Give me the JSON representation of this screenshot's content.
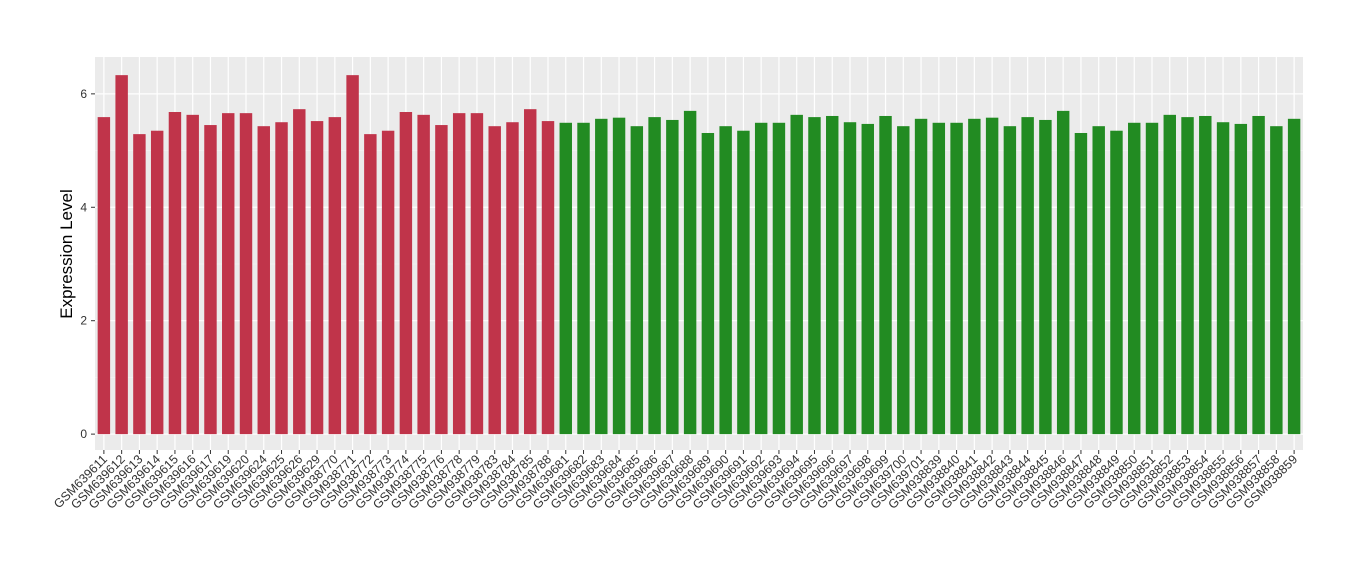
{
  "chart_data": {
    "type": "bar",
    "y_label": "Expression Level",
    "categories": [
      "GSM639611",
      "GSM639612",
      "GSM639613",
      "GSM639614",
      "GSM639615",
      "GSM639616",
      "GSM639617",
      "GSM639619",
      "GSM639620",
      "GSM639624",
      "GSM639625",
      "GSM639626",
      "GSM639629",
      "GSM938770",
      "GSM938771",
      "GSM938772",
      "GSM938773",
      "GSM938774",
      "GSM938775",
      "GSM938776",
      "GSM938778",
      "GSM938779",
      "GSM938783",
      "GSM938784",
      "GSM938785",
      "GSM938788",
      "GSM639681",
      "GSM639682",
      "GSM639683",
      "GSM639684",
      "GSM639685",
      "GSM639686",
      "GSM639687",
      "GSM639688",
      "GSM639689",
      "GSM639690",
      "GSM639691",
      "GSM639692",
      "GSM639693",
      "GSM639694",
      "GSM639695",
      "GSM639696",
      "GSM639697",
      "GSM639698",
      "GSM639699",
      "GSM639700",
      "GSM639701",
      "GSM938839",
      "GSM938840",
      "GSM938841",
      "GSM938842",
      "GSM938843",
      "GSM938844",
      "GSM938845",
      "GSM938846",
      "GSM938847",
      "GSM938848",
      "GSM938849",
      "GSM938850",
      "GSM938851",
      "GSM938852",
      "GSM938853",
      "GSM938854",
      "GSM938855",
      "GSM938856",
      "GSM938857",
      "GSM938858",
      "GSM938859"
    ],
    "values": [
      5.59,
      6.33,
      5.29,
      5.35,
      5.68,
      5.63,
      5.45,
      5.66,
      5.66,
      5.43,
      5.5,
      5.73,
      5.52,
      5.59,
      6.33,
      5.29,
      5.35,
      5.68,
      5.63,
      5.45,
      5.66,
      5.66,
      5.43,
      5.5,
      5.73,
      5.52,
      5.49,
      5.49,
      5.56,
      5.58,
      5.43,
      5.59,
      5.54,
      5.7,
      5.31,
      5.43,
      5.35,
      5.49,
      5.49,
      5.63,
      5.59,
      5.61,
      5.5,
      5.47,
      5.61,
      5.43,
      5.56,
      5.49,
      5.49,
      5.56,
      5.58,
      5.43,
      5.59,
      5.54,
      5.7,
      5.31,
      5.43,
      5.35,
      5.49,
      5.49,
      5.63,
      5.59,
      5.61,
      5.5,
      5.47,
      5.61,
      5.43,
      5.56
    ],
    "colors": [
      "#c0344a",
      "#c0344a",
      "#c0344a",
      "#c0344a",
      "#c0344a",
      "#c0344a",
      "#c0344a",
      "#c0344a",
      "#c0344a",
      "#c0344a",
      "#c0344a",
      "#c0344a",
      "#c0344a",
      "#c0344a",
      "#c0344a",
      "#c0344a",
      "#c0344a",
      "#c0344a",
      "#c0344a",
      "#c0344a",
      "#c0344a",
      "#c0344a",
      "#c0344a",
      "#c0344a",
      "#c0344a",
      "#c0344a",
      "#228b22",
      "#228b22",
      "#228b22",
      "#228b22",
      "#228b22",
      "#228b22",
      "#228b22",
      "#228b22",
      "#228b22",
      "#228b22",
      "#228b22",
      "#228b22",
      "#228b22",
      "#228b22",
      "#228b22",
      "#228b22",
      "#228b22",
      "#228b22",
      "#228b22",
      "#228b22",
      "#228b22",
      "#228b22",
      "#228b22",
      "#228b22",
      "#228b22",
      "#228b22",
      "#228b22",
      "#228b22",
      "#228b22",
      "#228b22",
      "#228b22",
      "#228b22",
      "#228b22",
      "#228b22",
      "#228b22",
      "#228b22",
      "#228b22",
      "#228b22",
      "#228b22",
      "#228b22",
      "#228b22",
      "#228b22"
    ],
    "ylim": [
      -0.28,
      6.65
    ],
    "yticks": [
      0,
      2,
      4,
      6
    ],
    "grid": true
  }
}
